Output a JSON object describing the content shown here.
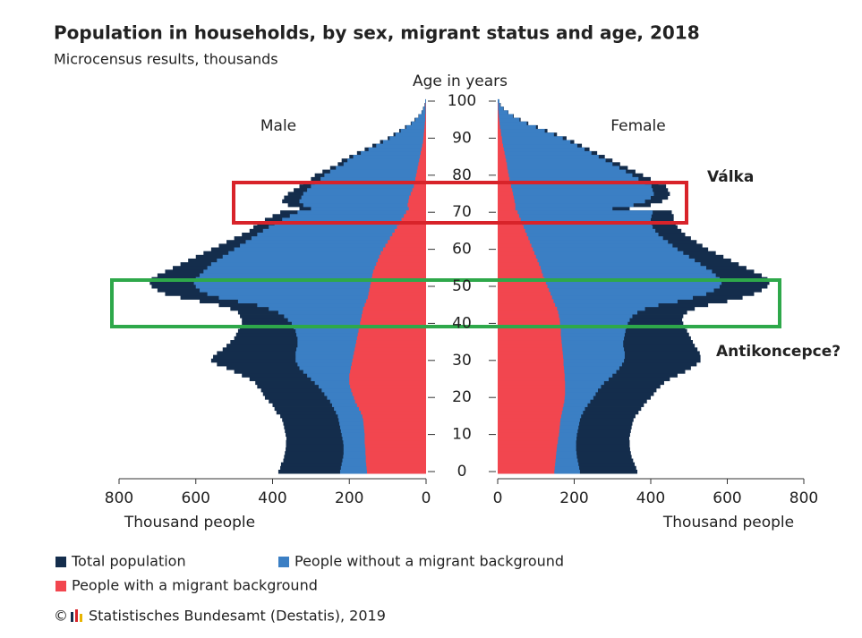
{
  "chart_data": {
    "type": "pyramid",
    "title": "Population in households, by sex, migrant status and age, 2018",
    "subtitle": "Microcensus results, thousands",
    "age_label": "Age in years",
    "agelim": [
      0,
      100
    ],
    "ageticks": [
      0,
      10,
      20,
      30,
      40,
      50,
      60,
      70,
      80,
      90,
      100
    ],
    "ages": [
      0,
      1,
      2,
      3,
      4,
      5,
      6,
      7,
      8,
      9,
      10,
      11,
      12,
      13,
      14,
      15,
      16,
      17,
      18,
      19,
      20,
      21,
      22,
      23,
      24,
      25,
      26,
      27,
      28,
      29,
      30,
      31,
      32,
      33,
      34,
      35,
      36,
      37,
      38,
      39,
      40,
      41,
      42,
      43,
      44,
      45,
      46,
      47,
      48,
      49,
      50,
      51,
      52,
      53,
      54,
      55,
      56,
      57,
      58,
      59,
      60,
      61,
      62,
      63,
      64,
      65,
      66,
      67,
      68,
      69,
      70,
      71,
      72,
      73,
      74,
      75,
      76,
      77,
      78,
      79,
      80,
      81,
      82,
      83,
      84,
      85,
      86,
      87,
      88,
      89,
      90,
      91,
      92,
      93,
      94,
      95,
      96,
      97,
      98,
      99,
      100
    ],
    "panels": [
      {
        "name": "Male",
        "side": "left",
        "xlim": [
          0,
          800
        ],
        "xticks": [
          0,
          200,
          400,
          600,
          800
        ],
        "xlabel": "Thousand people",
        "series": [
          {
            "name": "Total population",
            "color": "#142d4c",
            "values": [
              385,
              380,
              378,
              372,
              370,
              368,
              366,
              365,
              365,
              364,
              366,
              368,
              370,
              372,
              375,
              380,
              390,
              395,
              400,
              410,
              420,
              425,
              430,
              440,
              445,
              460,
              480,
              500,
              520,
              545,
              560,
              555,
              545,
              530,
              520,
              510,
              500,
              495,
              490,
              485,
              480,
              480,
              485,
              490,
              510,
              540,
              590,
              640,
              680,
              700,
              715,
              720,
              715,
              700,
              680,
              660,
              640,
              620,
              600,
              580,
              560,
              540,
              520,
              500,
              480,
              460,
              450,
              440,
              420,
              400,
              380,
              330,
              360,
              375,
              370,
              360,
              345,
              330,
              320,
              300,
              290,
              270,
              250,
              230,
              220,
              200,
              180,
              160,
              140,
              120,
              100,
              85,
              70,
              55,
              40,
              30,
              20,
              12,
              8,
              4,
              2
            ]
          },
          {
            "name": "People without a migrant background",
            "color": "#3b7fc4",
            "values": [
              224,
              222,
              220,
              218,
              216,
              215,
              215,
              215,
              216,
              218,
              220,
              222,
              224,
              226,
              228,
              230,
              235,
              240,
              245,
              250,
              258,
              265,
              272,
              280,
              290,
              300,
              310,
              320,
              330,
              335,
              340,
              340,
              340,
              338,
              335,
              335,
              335,
              338,
              340,
              345,
              350,
              360,
              370,
              385,
              410,
              440,
              490,
              540,
              570,
              590,
              600,
              605,
              600,
              590,
              580,
              570,
              560,
              545,
              530,
              515,
              500,
              485,
              470,
              455,
              440,
              425,
              410,
              395,
              375,
              355,
              335,
              300,
              320,
              330,
              325,
              320,
              310,
              300,
              290,
              275,
              265,
              250,
              235,
              215,
              205,
              190,
              170,
              150,
              130,
              112,
              95,
              80,
              66,
              52,
              38,
              28,
              19,
              11,
              7,
              3,
              2
            ]
          },
          {
            "name": "People with a migrant background",
            "color": "#f2464f",
            "values": [
              154,
              155,
              156,
              157,
              157,
              158,
              158,
              159,
              160,
              160,
              160,
              161,
              162,
              163,
              164,
              166,
              170,
              175,
              180,
              185,
              188,
              192,
              195,
              198,
              200,
              200,
              200,
              198,
              196,
              194,
              192,
              190,
              188,
              186,
              184,
              182,
              180,
              178,
              176,
              174,
              172,
              170,
              168,
              166,
              164,
              160,
              156,
              152,
              150,
              148,
              146,
              144,
              142,
              140,
              138,
              134,
              130,
              126,
              122,
              118,
              112,
              106,
              100,
              94,
              88,
              82,
              76,
              70,
              64,
              58,
              52,
              45,
              48,
              46,
              44,
              40,
              36,
              32,
              30,
              28,
              26,
              24,
              22,
              20,
              18,
              16,
              14,
              12,
              10,
              8,
              7,
              6,
              5,
              4,
              3,
              2,
              2,
              1,
              1,
              1,
              0
            ]
          }
        ]
      },
      {
        "name": "Female",
        "side": "right",
        "xlim": [
          0,
          800
        ],
        "xticks": [
          0,
          200,
          400,
          600,
          800
        ],
        "xlabel": "Thousand people",
        "series": [
          {
            "name": "Total population",
            "color": "#142d4c",
            "values": [
              365,
              362,
              358,
              354,
              350,
              348,
              346,
              345,
              345,
              344,
              346,
              348,
              350,
              352,
              355,
              360,
              368,
              375,
              382,
              390,
              400,
              408,
              415,
              425,
              435,
              450,
              470,
              490,
              505,
              520,
              530,
              530,
              528,
              522,
              515,
              510,
              505,
              500,
              495,
              490,
              485,
              482,
              485,
              495,
              515,
              550,
              600,
              640,
              670,
              690,
              705,
              710,
              705,
              690,
              670,
              650,
              630,
              610,
              590,
              570,
              550,
              535,
              520,
              505,
              490,
              480,
              470,
              465,
              460,
              460,
              455,
              345,
              400,
              430,
              445,
              450,
              445,
              440,
              420,
              400,
              380,
              360,
              340,
              320,
              300,
              280,
              260,
              240,
              220,
              200,
              180,
              155,
              130,
              105,
              80,
              60,
              42,
              28,
              16,
              8,
              4
            ]
          },
          {
            "name": "People without a migrant background",
            "color": "#3b7fc4",
            "values": [
              215,
              213,
              211,
              209,
              207,
              206,
              205,
              205,
              205,
              206,
              207,
              209,
              211,
              213,
              215,
              218,
              223,
              228,
              235,
              242,
              250,
              256,
              262,
              270,
              278,
              290,
              300,
              310,
              318,
              325,
              330,
              332,
              332,
              330,
              328,
              328,
              330,
              332,
              334,
              336,
              340,
              345,
              352,
              365,
              385,
              420,
              470,
              510,
              545,
              565,
              580,
              585,
              580,
              570,
              560,
              545,
              530,
              515,
              500,
              485,
              470,
              457,
              445,
              432,
              420,
              412,
              405,
              402,
              400,
              402,
              405,
              300,
              355,
              385,
              400,
              408,
              405,
              402,
              385,
              368,
              352,
              335,
              318,
              300,
              282,
              264,
              245,
              227,
              208,
              190,
              170,
              147,
              123,
              100,
              76,
              57,
              40,
              27,
              15,
              7,
              4
            ]
          },
          {
            "name": "People with a migrant background",
            "color": "#f2464f",
            "values": [
              148,
              149,
              150,
              151,
              152,
              153,
              154,
              155,
              157,
              158,
              160,
              161,
              162,
              163,
              164,
              166,
              168,
              170,
              172,
              174,
              175,
              176,
              176,
              176,
              176,
              175,
              175,
              174,
              173,
              172,
              172,
              171,
              170,
              169,
              168,
              167,
              166,
              165,
              165,
              164,
              163,
              162,
              160,
              158,
              155,
              150,
              146,
              142,
              138,
              134,
              130,
              126,
              122,
              118,
              115,
              112,
              108,
              104,
              100,
              96,
              92,
              88,
              84,
              80,
              76,
              72,
              68,
              64,
              60,
              56,
              52,
              46,
              46,
              44,
              42,
              40,
              38,
              35,
              33,
              31,
              29,
              27,
              25,
              24,
              22,
              20,
              18,
              16,
              14,
              12,
              11,
              9,
              8,
              6,
              5,
              4,
              3,
              2,
              1,
              1,
              0
            ]
          }
        ]
      }
    ],
    "legend_order": [
      0,
      1,
      2
    ],
    "annotations": [
      {
        "text": "Válka",
        "color": "#d8232a"
      },
      {
        "text": "Antikoncepce?",
        "color": "#2ea84a"
      }
    ],
    "copyright": "©",
    "source": "Statistisches Bundesamt (Destatis), 2019"
  }
}
